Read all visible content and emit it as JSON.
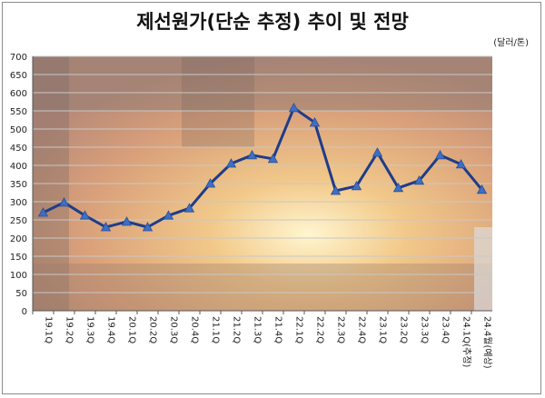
{
  "title": "제선원가(단순 추정) 추이 및 전망",
  "unit": "(달러/톤)",
  "colors": {
    "line": "#1f3c88",
    "marker": "#3d6fc4",
    "grid": "#c8c8c8",
    "axis": "#555555"
  },
  "chart_data": {
    "type": "line",
    "title": "제선원가(단순 추정) 추이 및 전망",
    "unit": "(달러/톤)",
    "xlabel": "",
    "ylabel": "",
    "ylim": [
      0,
      700
    ],
    "yticks": [
      0,
      50,
      100,
      150,
      200,
      250,
      300,
      350,
      400,
      450,
      500,
      550,
      600,
      650,
      700
    ],
    "grid": true,
    "categories": [
      "19.1Q",
      "19.2Q",
      "19.3Q",
      "19.4Q",
      "20.1Q",
      "20.2Q",
      "20.3Q",
      "20.4Q",
      "21.1Q",
      "21.2Q",
      "21.3Q",
      "21.4Q",
      "22.1Q",
      "22.2Q",
      "22.3Q",
      "22.4Q",
      "23.1Q",
      "23.2Q",
      "23.3Q",
      "23.4Q",
      "24.1Q(추정)",
      "24.4월(예상)"
    ],
    "series": [
      {
        "values": [
          270,
          298,
          262,
          230,
          245,
          230,
          262,
          282,
          350,
          405,
          428,
          418,
          558,
          518,
          330,
          343,
          435,
          338,
          358,
          428,
          403,
          333
        ]
      }
    ]
  }
}
